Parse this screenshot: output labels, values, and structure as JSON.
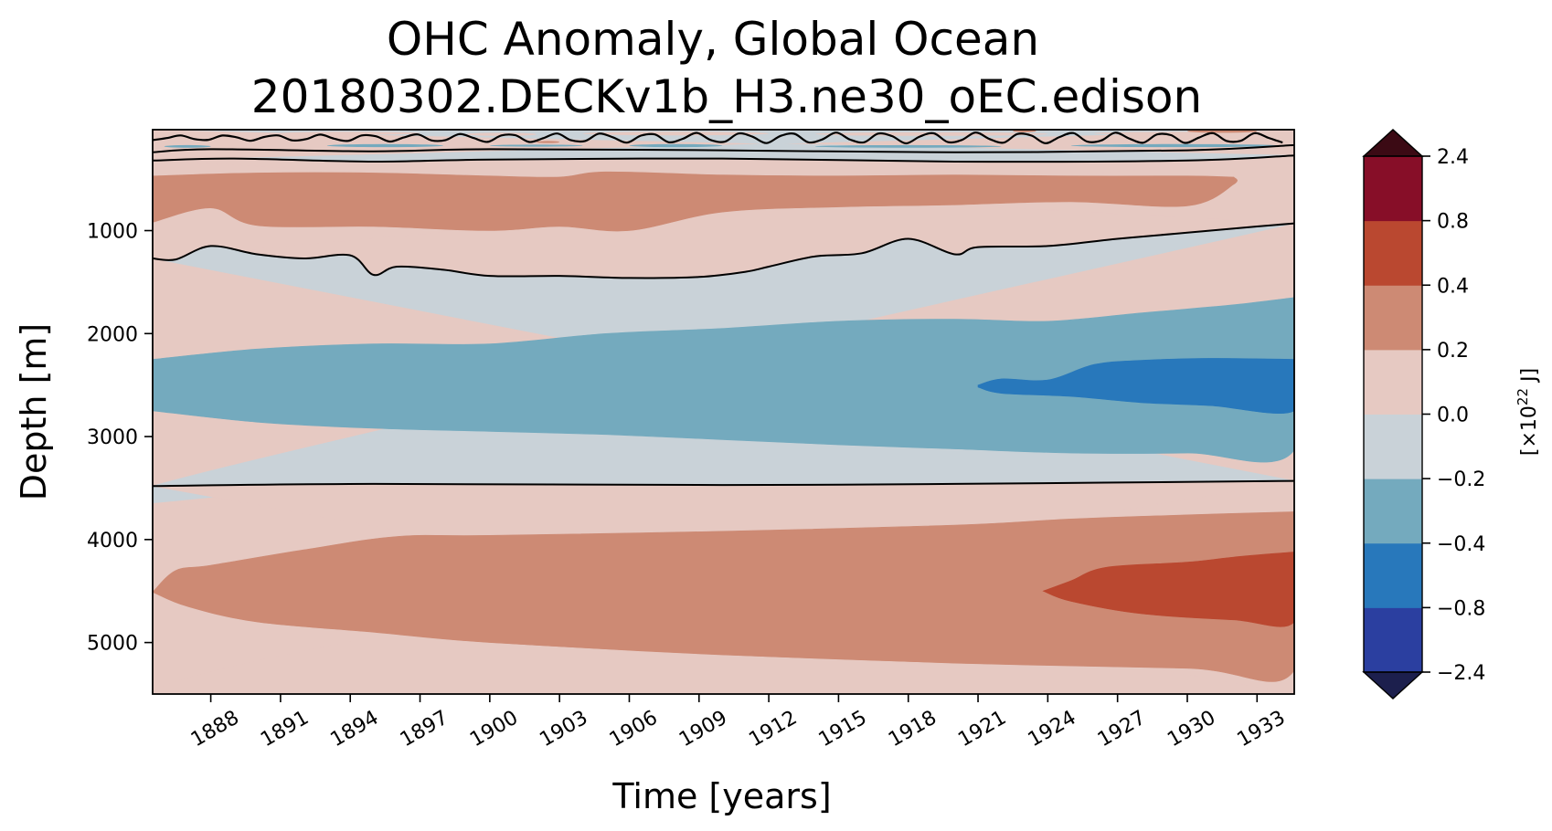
{
  "chart_data": {
    "type": "contourf",
    "title_line1": "OHC Anomaly, Global Ocean",
    "title_line2": "20180302.DECKv1b_H3.ne30_oEC.edison",
    "xlabel": "Time [years]",
    "ylabel": "Depth [m]",
    "xlim": [
      1885.5,
      1934.6
    ],
    "ylim": [
      5500,
      20
    ],
    "x_ticks": [
      1888,
      1891,
      1894,
      1897,
      1900,
      1903,
      1906,
      1909,
      1912,
      1915,
      1918,
      1921,
      1924,
      1927,
      1930,
      1933
    ],
    "x_tick_labels": [
      "1888",
      "1891",
      "1894",
      "1897",
      "1900",
      "1903",
      "1906",
      "1909",
      "1912",
      "1915",
      "1918",
      "1921",
      "1924",
      "1927",
      "1930",
      "1933"
    ],
    "y_ticks": [
      1000,
      2000,
      3000,
      4000,
      5000
    ],
    "y_tick_labels": [
      "1000",
      "2000",
      "3000",
      "4000",
      "5000"
    ],
    "colorbar": {
      "label_prefix": "[×10",
      "label_exp": "22",
      "label_suffix": " J]",
      "levels": [
        "−2.4",
        "−0.8",
        "−0.4",
        "−0.2",
        "0.0",
        "0.2",
        "0.4",
        "0.8",
        "2.4"
      ],
      "colors": [
        "#2b3fa0",
        "#2878bb",
        "#74aabe",
        "#c9d2d8",
        "#e6c9c2",
        "#cd8a74",
        "#ba4830",
        "#870e28"
      ],
      "under_color": "#1c1f4d",
      "over_color": "#3b0a14"
    },
    "bands": [
      {
        "name": "surface-mixed",
        "color": "#c9d2d8",
        "top": [
          [
            1885.5,
            20
          ],
          [
            1934.6,
            20
          ]
        ],
        "bottom": [
          [
            1885.5,
            320
          ],
          [
            1889,
            300
          ],
          [
            1895,
            330
          ],
          [
            1900,
            310
          ],
          [
            1910,
            300
          ],
          [
            1920,
            330
          ],
          [
            1930,
            320
          ],
          [
            1934.6,
            270
          ]
        ]
      },
      {
        "name": "upper-positive",
        "color": "#e6c9c2",
        "top": [
          [
            1885.5,
            320
          ],
          [
            1889,
            300
          ],
          [
            1895,
            330
          ],
          [
            1900,
            310
          ],
          [
            1910,
            300
          ],
          [
            1920,
            330
          ],
          [
            1930,
            320
          ],
          [
            1934.6,
            270
          ]
        ],
        "bottom": [
          [
            1885.5,
            1270
          ],
          [
            1886.5,
            1280
          ],
          [
            1888,
            1150
          ],
          [
            1890,
            1230
          ],
          [
            1892,
            1270
          ],
          [
            1894,
            1240
          ],
          [
            1895,
            1430
          ],
          [
            1896,
            1350
          ],
          [
            1898,
            1380
          ],
          [
            1900,
            1440
          ],
          [
            1903,
            1440
          ],
          [
            1906,
            1460
          ],
          [
            1909,
            1450
          ],
          [
            1911,
            1400
          ],
          [
            1912,
            1350
          ],
          [
            1914,
            1250
          ],
          [
            1916,
            1220
          ],
          [
            1918,
            1080
          ],
          [
            1920,
            1230
          ],
          [
            1921,
            1160
          ],
          [
            1924,
            1150
          ],
          [
            1927,
            1080
          ],
          [
            1930,
            1020
          ],
          [
            1933,
            960
          ],
          [
            1934.6,
            930
          ]
        ]
      },
      {
        "name": "upper-warm-core",
        "color": "#cd8a74",
        "top": [
          [
            1885.5,
            470
          ],
          [
            1890,
            440
          ],
          [
            1895,
            440
          ],
          [
            1900,
            470
          ],
          [
            1903,
            480
          ],
          [
            1905,
            430
          ],
          [
            1910,
            460
          ],
          [
            1915,
            470
          ],
          [
            1920,
            460
          ],
          [
            1925,
            470
          ],
          [
            1930,
            470
          ],
          [
            1932,
            480
          ]
        ],
        "bottom": [
          [
            1932,
            550
          ],
          [
            1930,
            760
          ],
          [
            1925,
            720
          ],
          [
            1920,
            750
          ],
          [
            1915,
            770
          ],
          [
            1910,
            820
          ],
          [
            1906,
            1000
          ],
          [
            1903,
            960
          ],
          [
            1900,
            1000
          ],
          [
            1895,
            960
          ],
          [
            1890,
            950
          ],
          [
            1888,
            780
          ],
          [
            1885.5,
            920
          ]
        ]
      },
      {
        "name": "mid-cool",
        "color": "#c9d2d8",
        "top": [
          [
            1885.5,
            1270
          ],
          [
            1886.5,
            1280
          ],
          [
            1888,
            1150
          ],
          [
            1890,
            1230
          ],
          [
            1892,
            1270
          ],
          [
            1894,
            1240
          ],
          [
            1895,
            1430
          ],
          [
            1896,
            1350
          ],
          [
            1898,
            1380
          ],
          [
            1900,
            1440
          ],
          [
            1903,
            1440
          ],
          [
            1906,
            1460
          ],
          [
            1909,
            1450
          ],
          [
            1911,
            1400
          ],
          [
            1912,
            1350
          ],
          [
            1914,
            1250
          ],
          [
            1916,
            1220
          ],
          [
            1918,
            1080
          ],
          [
            1920,
            1230
          ],
          [
            1921,
            1160
          ],
          [
            1924,
            1150
          ],
          [
            1927,
            1080
          ],
          [
            1930,
            1020
          ],
          [
            1933,
            960
          ],
          [
            1934.6,
            930
          ]
        ],
        "bottom": [
          [
            1885.5,
            3480
          ],
          [
            1895,
            3460
          ],
          [
            1910,
            3470
          ],
          [
            1920,
            3460
          ],
          [
            1934.6,
            3430
          ]
        ]
      },
      {
        "name": "mid-cool-core",
        "color": "#74aabe",
        "top": [
          [
            1885.5,
            2250
          ],
          [
            1890,
            2150
          ],
          [
            1895,
            2100
          ],
          [
            1900,
            2100
          ],
          [
            1905,
            2000
          ],
          [
            1910,
            1950
          ],
          [
            1915,
            1880
          ],
          [
            1920,
            1860
          ],
          [
            1924,
            1880
          ],
          [
            1928,
            1800
          ],
          [
            1932,
            1720
          ],
          [
            1934.6,
            1650
          ]
        ],
        "bottom": [
          [
            1934.6,
            3130
          ],
          [
            1930,
            3160
          ],
          [
            1925,
            3160
          ],
          [
            1920,
            3120
          ],
          [
            1915,
            3080
          ],
          [
            1910,
            3030
          ],
          [
            1905,
            2980
          ],
          [
            1900,
            2950
          ],
          [
            1895,
            2920
          ],
          [
            1890,
            2860
          ],
          [
            1885.5,
            2750
          ]
        ]
      },
      {
        "name": "mid-cold-core",
        "color": "#2878bb",
        "top": [
          [
            1921,
            2500
          ],
          [
            1922,
            2440
          ],
          [
            1924,
            2450
          ],
          [
            1926,
            2300
          ],
          [
            1928,
            2260
          ],
          [
            1931,
            2240
          ],
          [
            1934.6,
            2250
          ]
        ],
        "bottom": [
          [
            1934.6,
            2750
          ],
          [
            1931,
            2700
          ],
          [
            1928,
            2670
          ],
          [
            1925,
            2610
          ],
          [
            1922,
            2580
          ],
          [
            1921,
            2520
          ]
        ]
      },
      {
        "name": "deep-positive",
        "color": "#e6c9c2",
        "top": [
          [
            1885.5,
            3480
          ],
          [
            1895,
            3460
          ],
          [
            1910,
            3470
          ],
          [
            1920,
            3460
          ],
          [
            1934.6,
            3430
          ]
        ],
        "bottom": [
          [
            1885.5,
            5500
          ],
          [
            1934.6,
            5500
          ]
        ]
      },
      {
        "name": "deep-warm-core",
        "color": "#cd8a74",
        "top": [
          [
            1885.5,
            4510
          ],
          [
            1886.5,
            4300
          ],
          [
            1888,
            4250
          ],
          [
            1892,
            4100
          ],
          [
            1896,
            3970
          ],
          [
            1900,
            3960
          ],
          [
            1910,
            3920
          ],
          [
            1920,
            3860
          ],
          [
            1925,
            3800
          ],
          [
            1930,
            3760
          ],
          [
            1934.6,
            3730
          ]
        ],
        "bottom": [
          [
            1934.6,
            5270
          ],
          [
            1930,
            5250
          ],
          [
            1920,
            5200
          ],
          [
            1910,
            5120
          ],
          [
            1900,
            5000
          ],
          [
            1895,
            4900
          ],
          [
            1890,
            4800
          ],
          [
            1887,
            4650
          ],
          [
            1885.5,
            4510
          ]
        ]
      },
      {
        "name": "deep-hot-core",
        "color": "#ba4830",
        "top": [
          [
            1923.8,
            4500
          ],
          [
            1925,
            4400
          ],
          [
            1926.5,
            4270
          ],
          [
            1930,
            4220
          ],
          [
            1932,
            4170
          ],
          [
            1934.6,
            4120
          ]
        ],
        "bottom": [
          [
            1934.6,
            4800
          ],
          [
            1932,
            4780
          ],
          [
            1928,
            4720
          ],
          [
            1925,
            4600
          ],
          [
            1923.8,
            4500
          ]
        ]
      }
    ],
    "zero_contours": [
      [
        [
          1885.5,
          240
        ],
        [
          1888,
          210
        ],
        [
          1895,
          230
        ],
        [
          1900,
          210
        ],
        [
          1910,
          220
        ],
        [
          1920,
          240
        ],
        [
          1930,
          220
        ],
        [
          1934.6,
          170
        ]
      ],
      [
        [
          1885.5,
          320
        ],
        [
          1889,
          300
        ],
        [
          1895,
          330
        ],
        [
          1900,
          310
        ],
        [
          1910,
          300
        ],
        [
          1920,
          330
        ],
        [
          1930,
          320
        ],
        [
          1934.6,
          270
        ]
      ],
      [
        [
          1885.5,
          1270
        ],
        [
          1886.5,
          1280
        ],
        [
          1888,
          1150
        ],
        [
          1890,
          1230
        ],
        [
          1892,
          1270
        ],
        [
          1894,
          1240
        ],
        [
          1895,
          1430
        ],
        [
          1896,
          1350
        ],
        [
          1898,
          1380
        ],
        [
          1900,
          1440
        ],
        [
          1903,
          1440
        ],
        [
          1906,
          1460
        ],
        [
          1909,
          1450
        ],
        [
          1911,
          1400
        ],
        [
          1912,
          1350
        ],
        [
          1914,
          1250
        ],
        [
          1916,
          1220
        ],
        [
          1918,
          1080
        ],
        [
          1920,
          1230
        ],
        [
          1921,
          1160
        ],
        [
          1924,
          1150
        ],
        [
          1927,
          1080
        ],
        [
          1930,
          1020
        ],
        [
          1933,
          960
        ],
        [
          1934.6,
          930
        ]
      ],
      [
        [
          1885.5,
          3480
        ],
        [
          1895,
          3460
        ],
        [
          1910,
          3470
        ],
        [
          1920,
          3460
        ],
        [
          1934.6,
          3430
        ]
      ]
    ]
  }
}
